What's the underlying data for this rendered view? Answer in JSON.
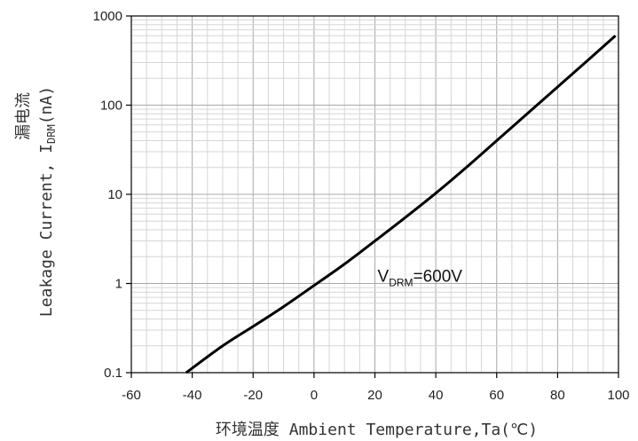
{
  "chart_data": {
    "type": "line",
    "xlabel": "环境温度 Ambient Temperature,Ta(℃)",
    "ylabel": {
      "line1": "漏电流",
      "line2_prefix": "Leakage Current, I",
      "line2_sub": "DRM",
      "line2_suffix": "(nA)"
    },
    "xlim": [
      -60,
      100
    ],
    "ylim": [
      0.1,
      1000
    ],
    "yscale": "log",
    "xticks": [
      -60,
      -40,
      -20,
      0,
      20,
      40,
      60,
      80,
      100
    ],
    "xtick_labels": [
      "-60",
      "-40",
      "-20",
      "0",
      "20",
      "40",
      "60",
      "80",
      "100"
    ],
    "yticks": [
      0.1,
      1,
      10,
      100,
      1000
    ],
    "ytick_labels": [
      "0.1",
      "1",
      "10",
      "100",
      "1000"
    ],
    "grid": true,
    "series": [
      {
        "color": "#000000",
        "x": [
          -42,
          -30,
          -20,
          -10,
          0,
          10,
          20,
          30,
          40,
          50,
          60,
          70,
          80,
          90,
          99
        ],
        "y": [
          0.1,
          0.2,
          0.33,
          0.55,
          0.95,
          1.65,
          3.0,
          5.5,
          10.3,
          20.0,
          40.0,
          80.0,
          160.0,
          320.0,
          600.0
        ]
      }
    ],
    "annotation": {
      "prefix": "V",
      "sub": "DRM",
      "suffix": "=600V",
      "x": 20,
      "y": 1
    }
  }
}
